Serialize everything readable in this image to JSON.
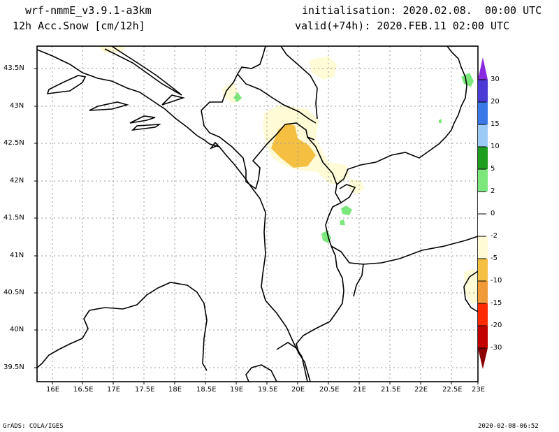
{
  "header": {
    "model": "wrf-nmmE_v3.9.1-a3km",
    "field": "12h Acc.Snow [cm/12h]",
    "init": "initialisation: 2020.02.08.  00:00 UTC",
    "valid": "valid(+74h): 2020.FEB.11 02:00 UTC"
  },
  "map": {
    "lon_labels": [
      "16E",
      "16.5E",
      "17E",
      "17.5E",
      "18E",
      "18.5E",
      "19E",
      "19.5E",
      "20E",
      "20.5E",
      "21E",
      "21.5E",
      "22E",
      "22.5E",
      "23E"
    ],
    "lat_labels": [
      "43.5N",
      "43N",
      "42.5N",
      "42N",
      "41.5N",
      "41N",
      "40.5N",
      "40N",
      "39.5N"
    ],
    "colorbar": {
      "labels": [
        "30",
        "20",
        "15",
        "10",
        "5",
        "2",
        "0",
        "-2",
        "-5",
        "-10",
        "-15",
        "-20",
        "-30"
      ],
      "colors": {
        "top_arrow": "#8a2be2",
        "c30": "#4b3bd6",
        "c20": "#3a78e8",
        "c15": "#9bcaf5",
        "c10": "#1e9e1e",
        "c5": "#7ce87c",
        "neutral": "#ffffff",
        "n2": "#fffbd6",
        "n5": "#f5c042",
        "n10": "#f09a3a",
        "n15": "#ff2a00",
        "n20": "#c30000",
        "n30": "#8b0000"
      }
    }
  },
  "footer": {
    "left": "GrADS: COLA/IGES",
    "right": "2020-02-08-06:52"
  }
}
